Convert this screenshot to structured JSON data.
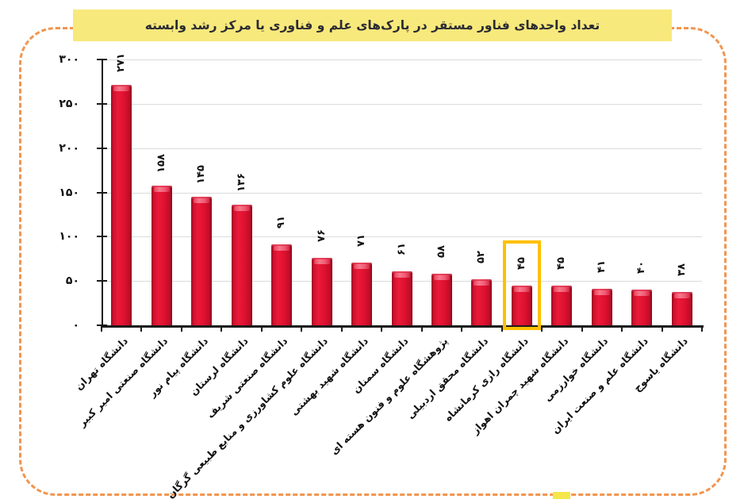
{
  "title_band": {
    "text": "تعداد واحدهای فناور مستقر در پارک‌های علم و فناوری یا مرکز رشد وابسته",
    "background_color": "#F8E97C",
    "text_color": "#2B2B33"
  },
  "frame": {
    "style": "dashed",
    "border_color": "#F2954F"
  },
  "chart_data": {
    "type": "bar",
    "title": "تعداد واحدهای فناور مستقر در پارک‌های علم و فناوری یا مرکز رشد وابسته",
    "xlabel": "",
    "ylabel": "",
    "ylim": [
      0,
      300
    ],
    "grid": true,
    "legend": false,
    "y_tick_values": [
      300,
      250,
      200,
      150,
      100,
      50,
      0
    ],
    "y_tick_labels_fa": [
      "۳۰۰",
      "۲۵۰",
      "۲۰۰",
      "۱۵۰",
      "۱۰۰",
      "۵۰",
      "۰"
    ],
    "categories": [
      "دانشگاه تهران",
      "دانشگاه صنعتی امیر کبیر",
      "دانشگاه پیام نور",
      "دانشگاه لرستان",
      "دانشگاه صنعتی شریف",
      "دانشگاه علوم کشاورزی و منابع طبیعی گرگان",
      "دانشگاه شهید بهشتی",
      "دانشگاه سمنان",
      "پژوهشگاه علوم و فنون هسته ای",
      "دانشگاه محقق اردبیلی",
      "دانشگاه رازی کرمانشاه",
      "دانشگاه شهید چمران اهواز",
      "دانشگاه خوارزمی",
      "دانشگاه علم و صنعت ایران",
      "دانشگاه یاسوج"
    ],
    "values": [
      271,
      158,
      145,
      136,
      91,
      76,
      71,
      61,
      58,
      52,
      45,
      45,
      41,
      40,
      38
    ],
    "value_labels_fa": [
      "۲۷۱",
      "۱۵۸",
      "۱۴۵",
      "۱۳۶",
      "۹۱",
      "۷۶",
      "۷۱",
      "۶۱",
      "۵۸",
      "۵۲",
      "۴۵",
      "۴۵",
      "۴۱",
      "۴۰",
      "۳۸"
    ],
    "highlighted_index": 10,
    "bar_color": "#E01030",
    "highlight_box_color": "#FFC000",
    "value_label_rotation_deg": -90,
    "category_label_rotation_deg": -45
  }
}
